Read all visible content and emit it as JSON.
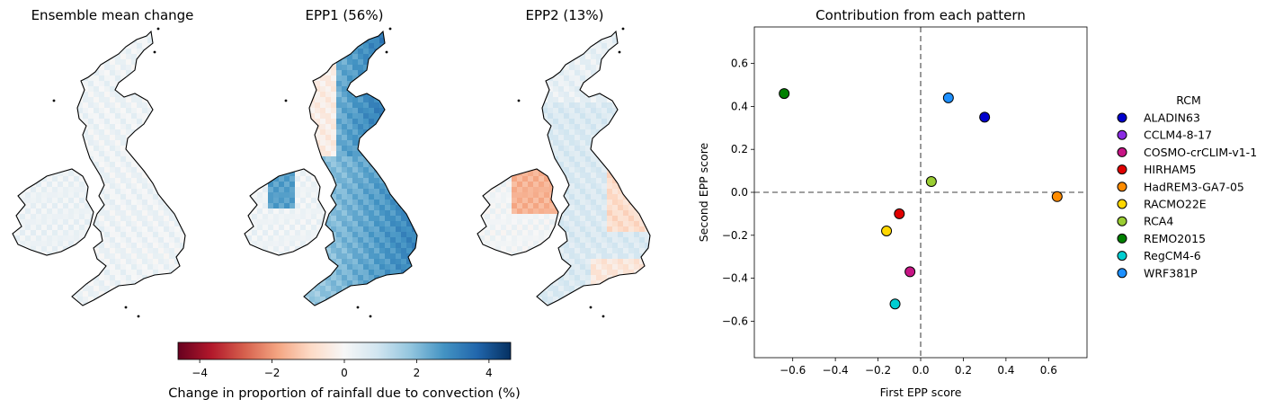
{
  "maps": [
    {
      "title": "Ensemble mean change",
      "field": "mean"
    },
    {
      "title": "EPP1 (56%)",
      "field": "epp1"
    },
    {
      "title": "EPP2 (13%)",
      "field": "epp2"
    }
  ],
  "colorbar": {
    "label": "Change in proportion of rainfall due to convection (%)",
    "range": [
      -4.6,
      4.6
    ],
    "ticks": [
      -4,
      -2,
      0,
      2,
      4
    ],
    "tick_labels": [
      "−4",
      "−2",
      "0",
      "2",
      "4"
    ],
    "colormap": "RdBu",
    "colors": [
      "#67001f",
      "#b2182b",
      "#d6604d",
      "#f4a582",
      "#fddbc7",
      "#f7f7f7",
      "#d1e5f0",
      "#92c5de",
      "#4393c3",
      "#2166ac",
      "#053061"
    ]
  },
  "chart_data": {
    "type": "scatter",
    "title": "Contribution from each pattern",
    "xlabel": "First EPP score",
    "ylabel": "Second EPP score",
    "xlim": [
      -0.78,
      0.78
    ],
    "ylim": [
      -0.77,
      0.77
    ],
    "xticks": [
      -0.6,
      -0.4,
      -0.2,
      0.0,
      0.2,
      0.4,
      0.6
    ],
    "xtick_labels": [
      "−0.6",
      "−0.4",
      "−0.2",
      "0.0",
      "0.2",
      "0.4",
      "0.6"
    ],
    "yticks": [
      -0.6,
      -0.4,
      -0.2,
      0.0,
      0.2,
      0.4,
      0.6
    ],
    "ytick_labels": [
      "−0.6",
      "−0.4",
      "−0.2",
      "0.0",
      "0.2",
      "0.4",
      "0.6"
    ],
    "grid": false,
    "reference_lines": {
      "x": 0,
      "y": 0,
      "style": "dashed",
      "color": "#808080"
    },
    "legend": {
      "title": "RCM",
      "placement": "outside-right"
    },
    "series": [
      {
        "name": "ALADIN63",
        "x": 0.3,
        "y": 0.35,
        "color": "#0000cd"
      },
      {
        "name": "CCLM4-8-17",
        "x": null,
        "y": null,
        "color": "#8a2be2"
      },
      {
        "name": "COSMO-crCLIM-v1-1",
        "x": -0.05,
        "y": -0.37,
        "color": "#c71585"
      },
      {
        "name": "HIRHAM5",
        "x": -0.1,
        "y": -0.1,
        "color": "#e00000"
      },
      {
        "name": "HadREM3-GA7-05",
        "x": 0.64,
        "y": -0.02,
        "color": "#ff8c00"
      },
      {
        "name": "RACMO22E",
        "x": -0.16,
        "y": -0.18,
        "color": "#ffd700"
      },
      {
        "name": "RCA4",
        "x": 0.05,
        "y": 0.05,
        "color": "#9acd32"
      },
      {
        "name": "REMO2015",
        "x": -0.64,
        "y": 0.46,
        "color": "#008000"
      },
      {
        "name": "RegCM4-6",
        "x": -0.12,
        "y": -0.52,
        "color": "#00ced1"
      },
      {
        "name": "WRF381P",
        "x": 0.13,
        "y": 0.44,
        "color": "#1e90ff"
      }
    ],
    "hidden_point_note": null
  }
}
